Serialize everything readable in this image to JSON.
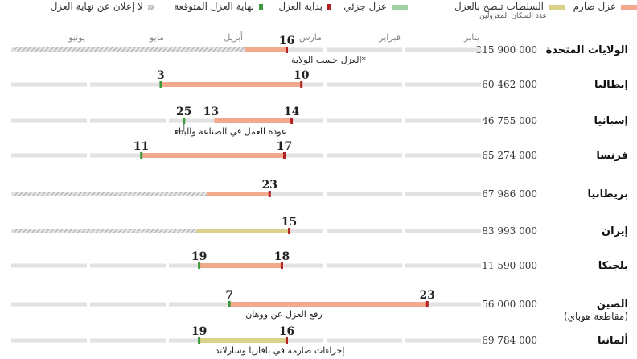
{
  "legend": [
    {
      "label": "عزل صارم",
      "key": "strict",
      "color": "#f2a98e"
    },
    {
      "label": "السلطات تنصح بالعزل",
      "key": "advised",
      "color": "#d8d28a"
    },
    {
      "label": "عزل جزئي",
      "key": "partial",
      "color": "#9fd1a5"
    },
    {
      "label": "بداية العزل",
      "key": "start",
      "color": "#b22222"
    },
    {
      "label": "نهاية العزل المتوقعة",
      "key": "end",
      "color": "#3a9a3a"
    },
    {
      "label": "لا إعلان عن نهاية العزل",
      "key": "none",
      "color": "#c8c8c8"
    }
  ],
  "header": {
    "population_label": "عدد السكان المعزولين"
  },
  "chart_data": {
    "type": "timeline",
    "months": [
      "يناير",
      "فبراير",
      "مارس",
      "أبريل",
      "مايو",
      "يونيو"
    ],
    "countries": [
      {
        "name": "الولايات المتحدة",
        "population": "315 900 000",
        "segments": [
          {
            "type": "strict",
            "from": "2020-03-16",
            "to": "2020-04-01"
          },
          {
            "type": "none",
            "from": "2020-04-01",
            "to": "2020-06-30"
          }
        ],
        "start": "2020-03-16",
        "start_label": "16",
        "note": "*العزل حسب الولاية"
      },
      {
        "name": "إيطاليا",
        "population": "60 462 000",
        "segments": [
          {
            "type": "strict",
            "from": "2020-03-10",
            "to": "2020-05-03"
          }
        ],
        "start": "2020-03-10",
        "start_label": "10",
        "end": "2020-05-03",
        "end_label": "3"
      },
      {
        "name": "إسبانيا",
        "population": "46 755 000",
        "segments": [
          {
            "type": "strict",
            "from": "2020-03-14",
            "to": "2020-04-13"
          }
        ],
        "start": "2020-03-14",
        "start_label": "14",
        "end": "2020-04-25",
        "end_label": "25",
        "extra_label": "13",
        "extra_date": "2020-04-13",
        "note": "عودة العمل في الصناعة والبناء"
      },
      {
        "name": "فرنسا",
        "population": "65 274 000",
        "segments": [
          {
            "type": "strict",
            "from": "2020-03-17",
            "to": "2020-05-11"
          }
        ],
        "start": "2020-03-17",
        "start_label": "17",
        "end": "2020-05-11",
        "end_label": "11"
      },
      {
        "name": "بريطانيا",
        "population": "67 986 000",
        "segments": [
          {
            "type": "strict",
            "from": "2020-03-23",
            "to": "2020-04-16"
          },
          {
            "type": "none",
            "from": "2020-04-16",
            "to": "2020-06-30"
          }
        ],
        "start": "2020-03-23",
        "start_label": "23"
      },
      {
        "name": "إيران",
        "population": "83 993 000",
        "segments": [
          {
            "type": "advised",
            "from": "2020-03-15",
            "to": "2020-04-20"
          },
          {
            "type": "none",
            "from": "2020-04-20",
            "to": "2020-06-30"
          }
        ],
        "start": "2020-03-15",
        "start_label": "15"
      },
      {
        "name": "بلجيكا",
        "population": "11 590 000",
        "segments": [
          {
            "type": "strict",
            "from": "2020-03-18",
            "to": "2020-04-19"
          }
        ],
        "start": "2020-03-18",
        "start_label": "18",
        "end": "2020-04-19",
        "end_label": "19"
      },
      {
        "name": "الصين",
        "subname": "(مقاطعة هوباي)",
        "population": "56 000 000",
        "segments": [
          {
            "type": "strict",
            "from": "2020-01-23",
            "to": "2020-04-07"
          }
        ],
        "start": "2020-01-23",
        "start_label": "23",
        "end": "2020-04-07",
        "end_label": "7",
        "note": "رفع العزل عن ووهان"
      },
      {
        "name": "ألمانيا",
        "population": "69 784 000",
        "segments": [
          {
            "type": "advised",
            "from": "2020-03-16",
            "to": "2020-04-19"
          }
        ],
        "start": "2020-03-16",
        "start_label": "16",
        "end": "2020-04-19",
        "end_label": "19",
        "note": "إجراءات صارمة في بافاريا وسارلاند"
      }
    ]
  }
}
